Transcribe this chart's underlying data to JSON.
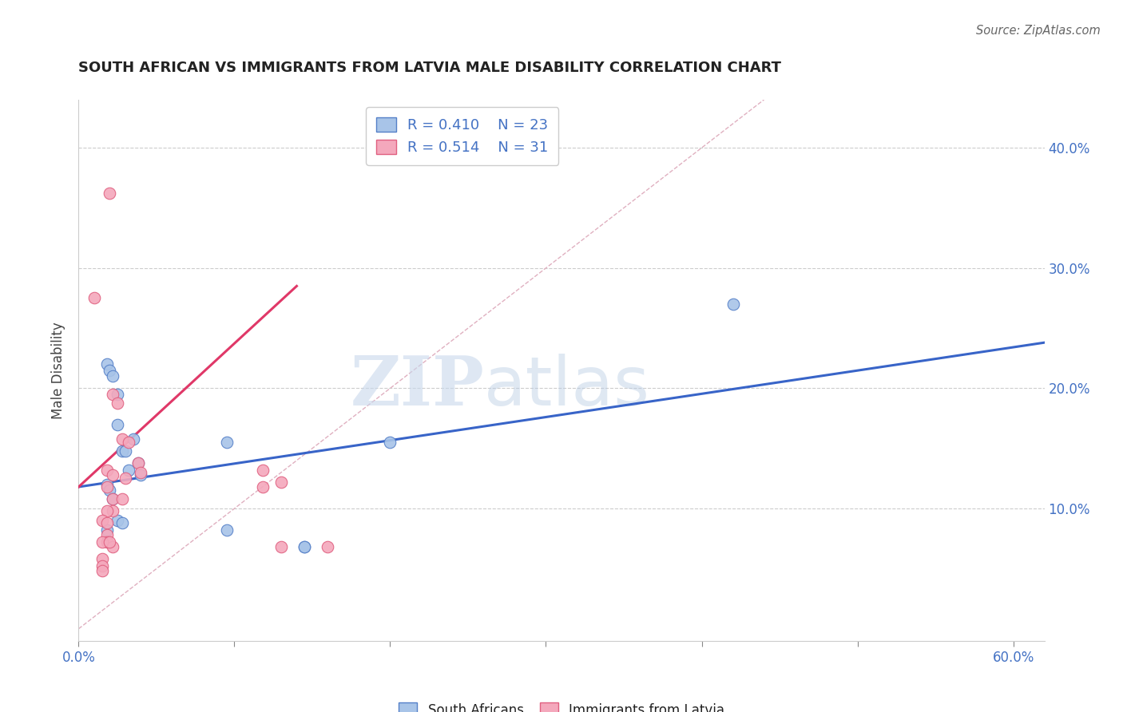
{
  "title": "SOUTH AFRICAN VS IMMIGRANTS FROM LATVIA MALE DISABILITY CORRELATION CHART",
  "source": "Source: ZipAtlas.com",
  "ylabel": "Male Disability",
  "xlim": [
    0.0,
    0.62
  ],
  "ylim": [
    -0.01,
    0.44
  ],
  "xtick_positions": [
    0.0,
    0.1,
    0.2,
    0.3,
    0.4,
    0.5,
    0.6
  ],
  "xtick_labels": [
    "0.0%",
    "",
    "",
    "",
    "",
    "",
    "60.0%"
  ],
  "ytick_positions": [
    0.1,
    0.2,
    0.3,
    0.4
  ],
  "ytick_labels": [
    "10.0%",
    "20.0%",
    "30.0%",
    "40.0%"
  ],
  "blue_R": "0.410",
  "blue_N": "23",
  "pink_R": "0.514",
  "pink_N": "31",
  "blue_scatter_color": "#a8c4e8",
  "pink_scatter_color": "#f4a8bc",
  "blue_edge_color": "#5580c8",
  "pink_edge_color": "#e06080",
  "blue_line_color": "#3864c8",
  "pink_line_color": "#e03868",
  "diag_line_color": "#e0b0c0",
  "legend_label_blue": "South Africans",
  "legend_label_pink": "Immigrants from Latvia",
  "watermark_zip": "ZIP",
  "watermark_atlas": "atlas",
  "blue_scatter_x": [
    0.018,
    0.02,
    0.022,
    0.025,
    0.025,
    0.028,
    0.03,
    0.032,
    0.035,
    0.038,
    0.04,
    0.018,
    0.02,
    0.022,
    0.025,
    0.028,
    0.095,
    0.2,
    0.42,
    0.018,
    0.095,
    0.145,
    0.145
  ],
  "blue_scatter_y": [
    0.22,
    0.215,
    0.21,
    0.195,
    0.17,
    0.148,
    0.148,
    0.132,
    0.158,
    0.138,
    0.128,
    0.12,
    0.115,
    0.108,
    0.09,
    0.088,
    0.155,
    0.155,
    0.27,
    0.082,
    0.082,
    0.068,
    0.068
  ],
  "pink_scatter_x": [
    0.01,
    0.02,
    0.022,
    0.025,
    0.028,
    0.032,
    0.038,
    0.04,
    0.018,
    0.022,
    0.018,
    0.022,
    0.028,
    0.022,
    0.018,
    0.015,
    0.018,
    0.018,
    0.018,
    0.022,
    0.118,
    0.13,
    0.118,
    0.015,
    0.015,
    0.015,
    0.015,
    0.02,
    0.03,
    0.13,
    0.16
  ],
  "pink_scatter_y": [
    0.275,
    0.362,
    0.195,
    0.188,
    0.158,
    0.155,
    0.138,
    0.13,
    0.132,
    0.128,
    0.118,
    0.108,
    0.108,
    0.098,
    0.098,
    0.09,
    0.088,
    0.078,
    0.072,
    0.068,
    0.132,
    0.122,
    0.118,
    0.058,
    0.052,
    0.048,
    0.072,
    0.072,
    0.125,
    0.068,
    0.068
  ],
  "blue_line_x": [
    0.0,
    0.62
  ],
  "blue_line_y": [
    0.118,
    0.238
  ],
  "pink_line_x": [
    0.0,
    0.14
  ],
  "pink_line_y": [
    0.118,
    0.285
  ],
  "diag_line_x": [
    0.0,
    0.44
  ],
  "diag_line_y": [
    0.0,
    0.44
  ]
}
